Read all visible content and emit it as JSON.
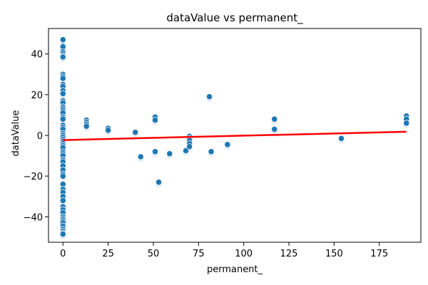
{
  "chart_data": {
    "type": "scatter",
    "title": "dataValue vs permanent_",
    "xlabel": "permanent_",
    "ylabel": "dataValue",
    "xlim": [
      -8,
      198
    ],
    "ylim": [
      -52.5,
      52.5
    ],
    "xticks": [
      0,
      25,
      50,
      75,
      100,
      125,
      150,
      175
    ],
    "yticks": [
      -40,
      -20,
      0,
      20,
      40
    ],
    "grid": false,
    "legend": "none",
    "point_color": "#1f77b4",
    "trend_color": "#ff0000",
    "points": [
      [
        0,
        47
      ],
      [
        0,
        44
      ],
      [
        0,
        43.5
      ],
      [
        0,
        41
      ],
      [
        0,
        40
      ],
      [
        0,
        39
      ],
      [
        0,
        38.5
      ],
      [
        0,
        30
      ],
      [
        0,
        29
      ],
      [
        0,
        28
      ],
      [
        0,
        25
      ],
      [
        0,
        24
      ],
      [
        0,
        22
      ],
      [
        0,
        20.5
      ],
      [
        0,
        17
      ],
      [
        0,
        16
      ],
      [
        0,
        14
      ],
      [
        0,
        13
      ],
      [
        0,
        12
      ],
      [
        0,
        11
      ],
      [
        0,
        9
      ],
      [
        0,
        8
      ],
      [
        0,
        5
      ],
      [
        0,
        4
      ],
      [
        0,
        3
      ],
      [
        0,
        1
      ],
      [
        0,
        0
      ],
      [
        0,
        -1
      ],
      [
        0,
        -2
      ],
      [
        0,
        -3
      ],
      [
        0,
        -4
      ],
      [
        0,
        -5
      ],
      [
        0,
        -6
      ],
      [
        0,
        -8
      ],
      [
        0,
        -9
      ],
      [
        0,
        -10
      ],
      [
        0,
        -12
      ],
      [
        0,
        -13
      ],
      [
        0,
        -15
      ],
      [
        0,
        -17
      ],
      [
        0,
        -19
      ],
      [
        0,
        -20
      ],
      [
        0,
        -24
      ],
      [
        0,
        -26.5
      ],
      [
        0,
        -28
      ],
      [
        0,
        -30
      ],
      [
        0,
        -32
      ],
      [
        0,
        -35
      ],
      [
        0,
        -36.5
      ],
      [
        0,
        -38
      ],
      [
        0,
        -40
      ],
      [
        0,
        -41
      ],
      [
        0,
        -42
      ],
      [
        0,
        -43
      ],
      [
        0,
        -44.5
      ],
      [
        0,
        -46
      ],
      [
        0,
        -47
      ],
      [
        0,
        -48
      ],
      [
        0,
        -48.5
      ],
      [
        13,
        7.5
      ],
      [
        13,
        6.5
      ],
      [
        13,
        5.5
      ],
      [
        13,
        4.5
      ],
      [
        25,
        3.5
      ],
      [
        25,
        2.5
      ],
      [
        40,
        1.5
      ],
      [
        43,
        -10.5
      ],
      [
        51,
        -8
      ],
      [
        51,
        9
      ],
      [
        51,
        7.5
      ],
      [
        53,
        -23
      ],
      [
        59,
        -9
      ],
      [
        68,
        -7.5
      ],
      [
        70,
        -0.5
      ],
      [
        70,
        -1.5
      ],
      [
        70,
        -2.5
      ],
      [
        70,
        -4
      ],
      [
        70,
        -5.5
      ],
      [
        81,
        19
      ],
      [
        82,
        -8
      ],
      [
        91,
        -4.5
      ],
      [
        117,
        8
      ],
      [
        117,
        3
      ],
      [
        154,
        -1.5
      ],
      [
        190,
        9.5
      ],
      [
        190,
        8
      ],
      [
        190,
        6
      ]
    ],
    "trend_line": {
      "x": [
        0,
        190
      ],
      "y": [
        -2.3,
        1.8
      ]
    }
  }
}
